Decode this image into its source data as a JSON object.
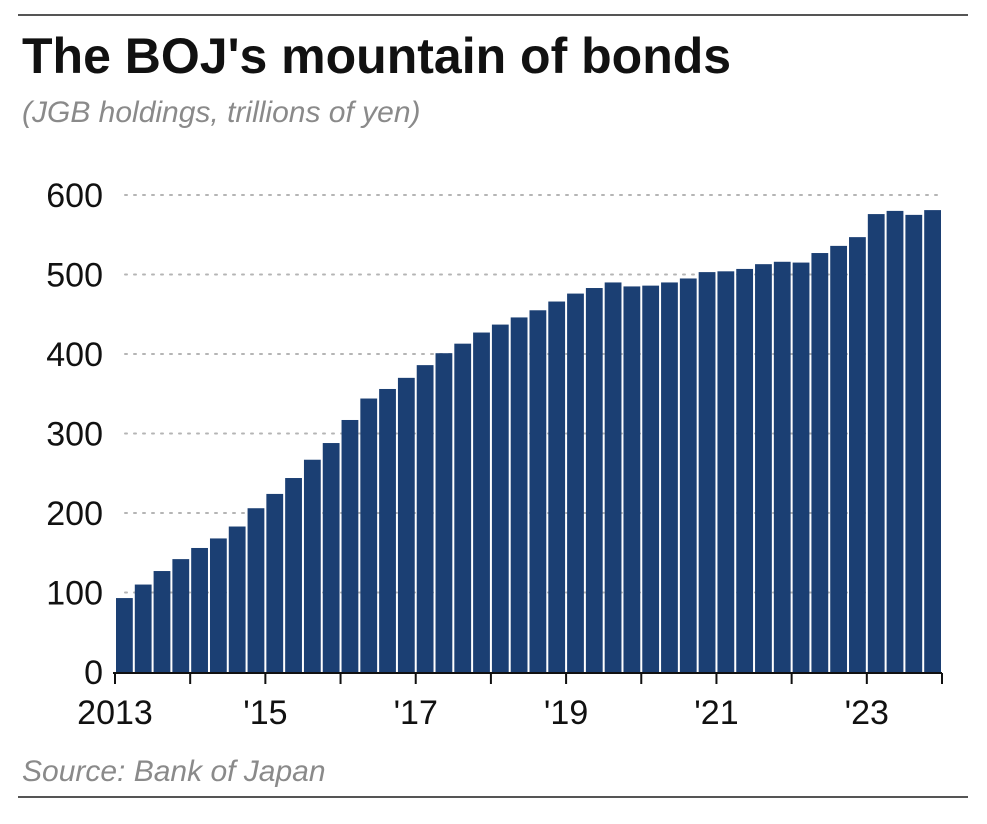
{
  "header": {
    "title": "The BOJ's mountain of bonds",
    "subtitle": "(JGB holdings, trillions of yen)"
  },
  "footer": {
    "source": "Source: Bank of Japan"
  },
  "colors": {
    "bar": "#1b3f73",
    "grid": "#b5b5b5",
    "axis": "#111111",
    "text": "#111111",
    "muted": "#8a8a8a"
  },
  "chart_data": {
    "type": "bar",
    "title": "The BOJ's mountain of bonds",
    "subtitle": "(JGB holdings, trillions of yen)",
    "frequency": "quarterly",
    "ylim": [
      0,
      600
    ],
    "yticks": [
      0,
      100,
      200,
      300,
      400,
      500,
      600
    ],
    "x_tick_labels": [
      {
        "label": "2013",
        "index": 0
      },
      {
        "label": "'15",
        "index": 8
      },
      {
        "label": "'17",
        "index": 16
      },
      {
        "label": "'19",
        "index": 24
      },
      {
        "label": "'21",
        "index": 32
      },
      {
        "label": "'23",
        "index": 40
      }
    ],
    "grid": "horizontal dotted",
    "legend": "none",
    "categories": [
      "2013 Q1",
      "2013 Q2",
      "2013 Q3",
      "2013 Q4",
      "2014 Q1",
      "2014 Q2",
      "2014 Q3",
      "2014 Q4",
      "2015 Q1",
      "2015 Q2",
      "2015 Q3",
      "2015 Q4",
      "2016 Q1",
      "2016 Q2",
      "2016 Q3",
      "2016 Q4",
      "2017 Q1",
      "2017 Q2",
      "2017 Q3",
      "2017 Q4",
      "2018 Q1",
      "2018 Q2",
      "2018 Q3",
      "2018 Q4",
      "2019 Q1",
      "2019 Q2",
      "2019 Q3",
      "2019 Q4",
      "2020 Q1",
      "2020 Q2",
      "2020 Q3",
      "2020 Q4",
      "2021 Q1",
      "2021 Q2",
      "2021 Q3",
      "2021 Q4",
      "2022 Q1",
      "2022 Q2",
      "2022 Q3",
      "2022 Q4",
      "2023 Q1",
      "2023 Q2",
      "2023 Q3",
      "2023 Q4"
    ],
    "values": [
      93,
      110,
      127,
      142,
      156,
      168,
      183,
      206,
      224,
      244,
      267,
      288,
      317,
      344,
      356,
      370,
      386,
      401,
      413,
      427,
      437,
      446,
      455,
      466,
      476,
      483,
      490,
      485,
      486,
      490,
      495,
      503,
      504,
      507,
      513,
      516,
      515,
      527,
      536,
      547,
      576,
      580,
      575,
      581
    ]
  }
}
